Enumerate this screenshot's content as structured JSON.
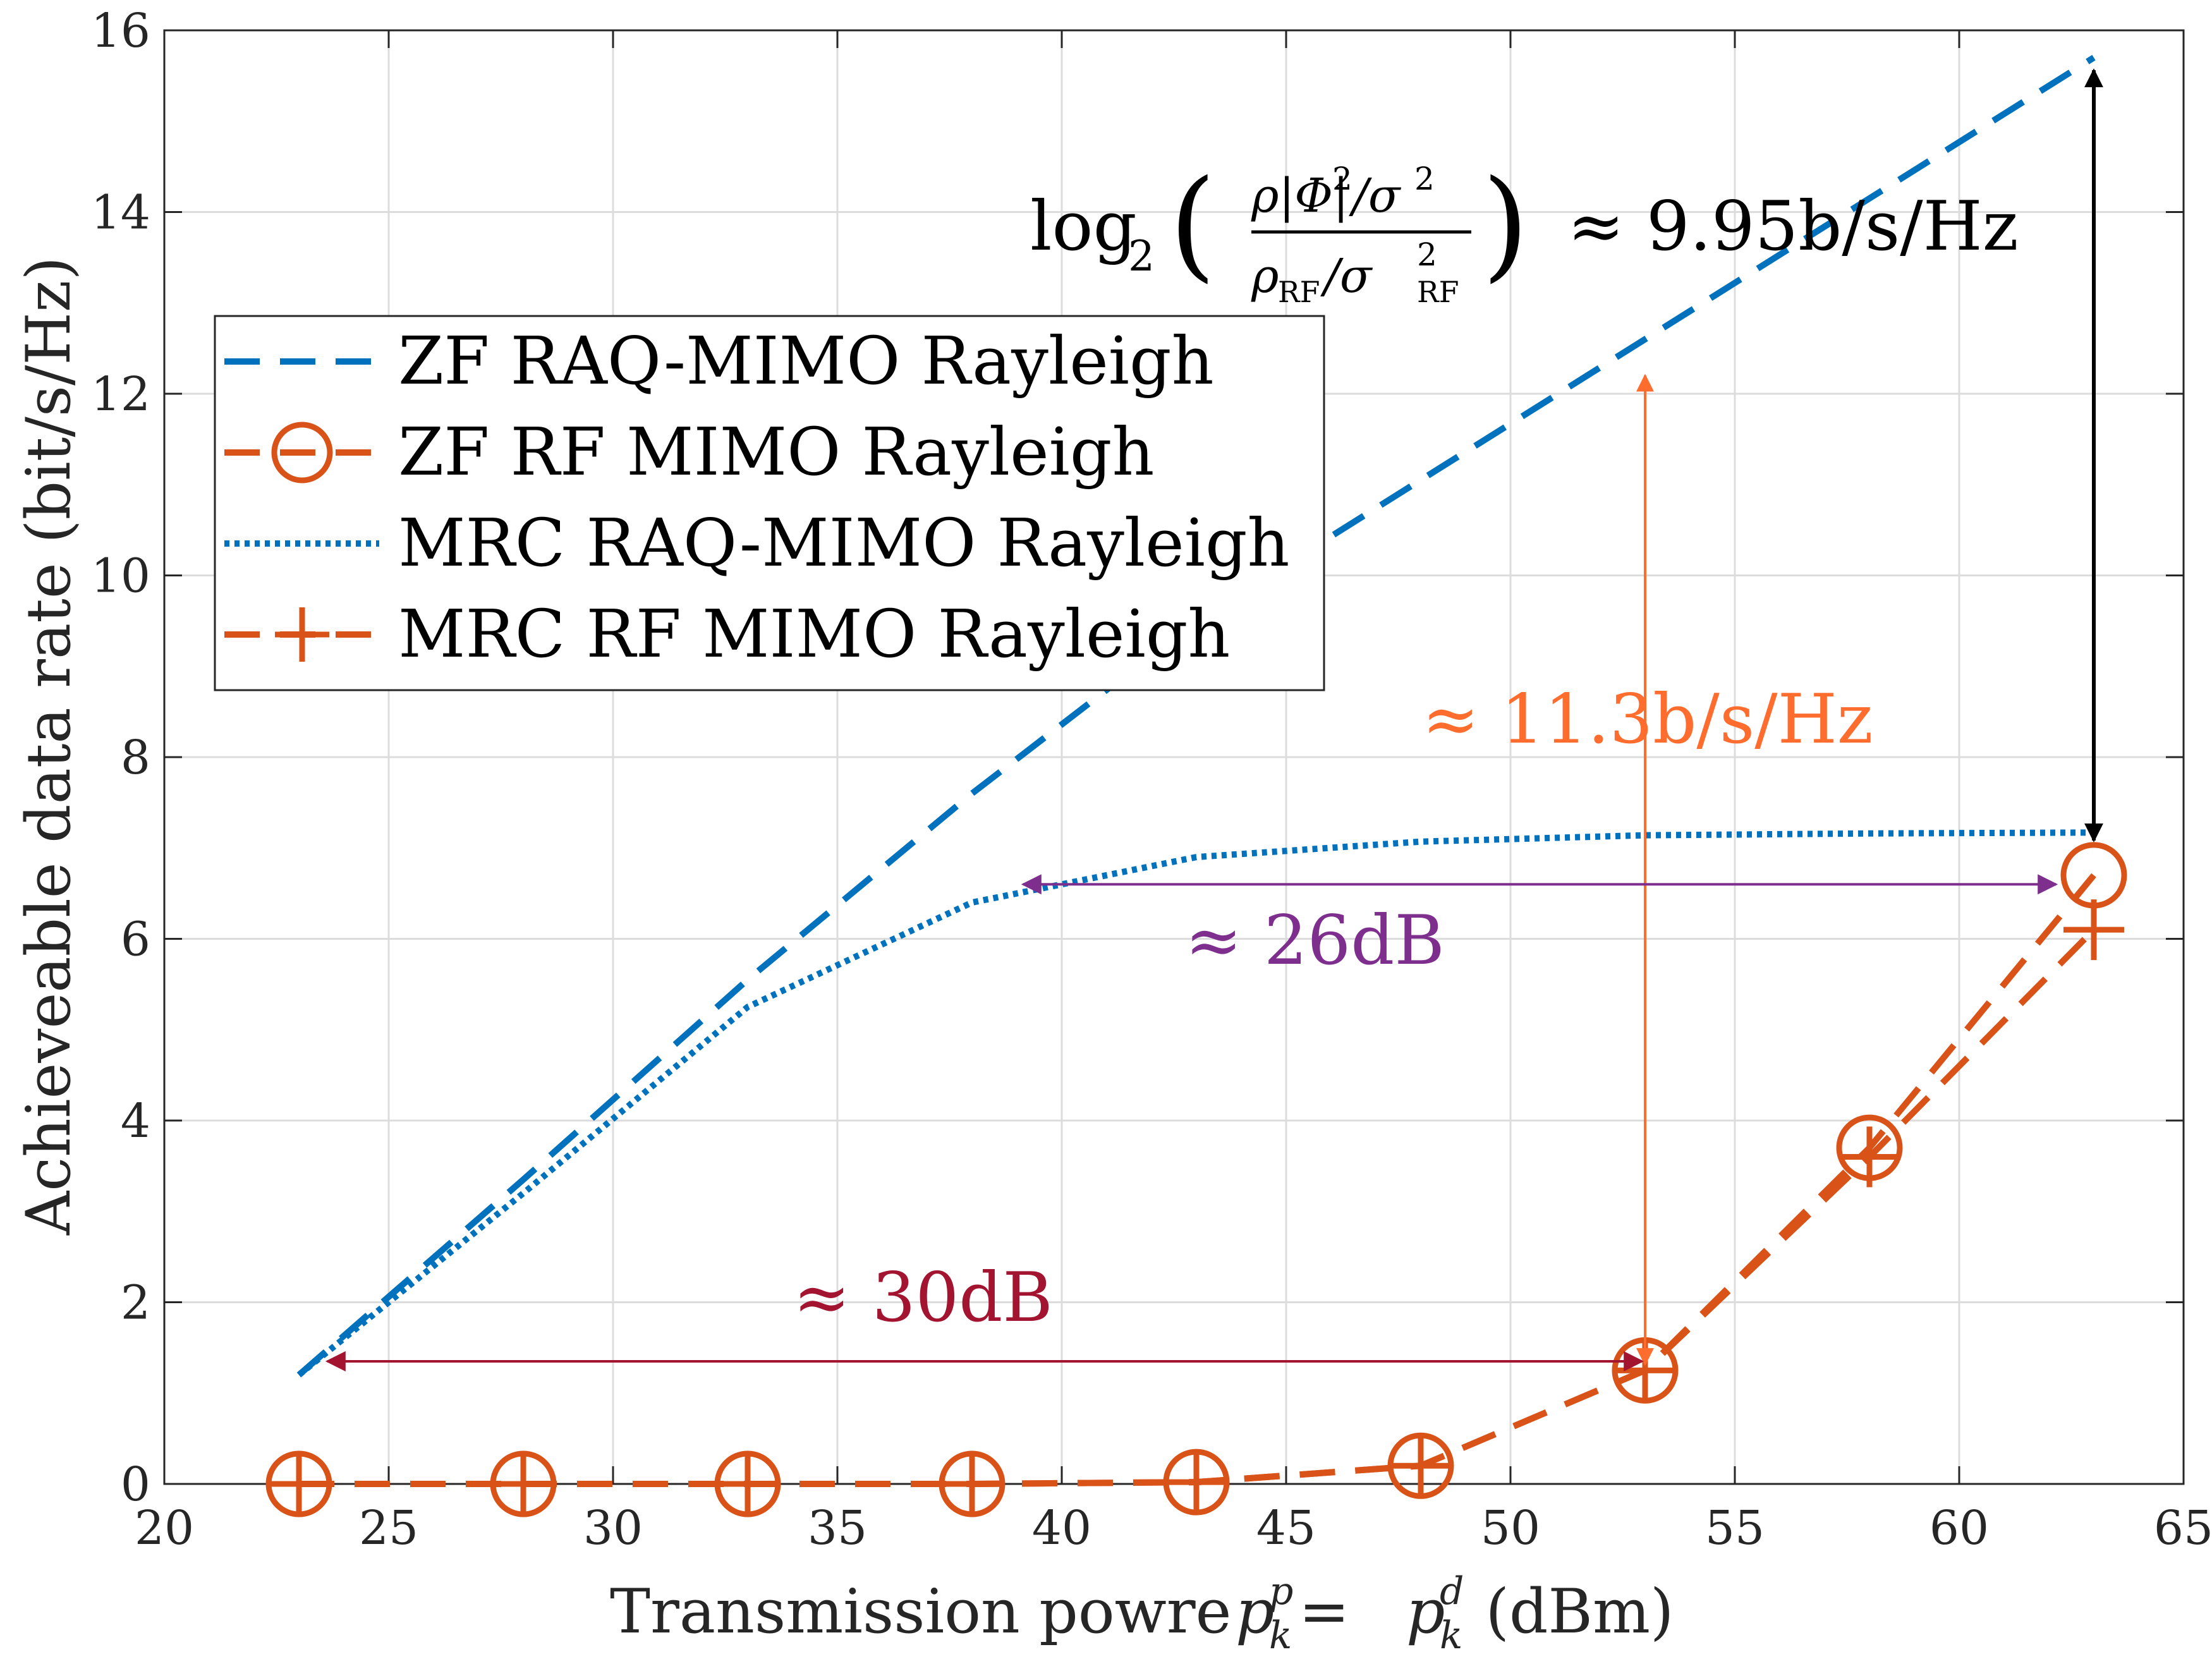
{
  "chart_data": {
    "type": "line",
    "xlabel": "Transmission powre",
    "xlabel_math": [
      "p",
      "k",
      "p",
      " = ",
      "p",
      "k",
      "d",
      " (dBm)"
    ],
    "ylabel": "Achieveable data rate (bit/s/Hz)",
    "xlim": [
      20,
      65
    ],
    "ylim": [
      0,
      16
    ],
    "x_ticks": [
      20,
      25,
      30,
      35,
      40,
      45,
      50,
      55,
      60,
      65
    ],
    "y_ticks": [
      0,
      2,
      4,
      6,
      8,
      10,
      12,
      14,
      16
    ],
    "grid": true,
    "legend_position": "upper-left",
    "series": [
      {
        "name": "ZF RAQ-MIMO Rayleigh",
        "color": "#0072BD",
        "style": "dashed",
        "marker": "none",
        "x": [
          23,
          28,
          33,
          38,
          43,
          48,
          53,
          58,
          63
        ],
        "y": [
          1.2,
          3.35,
          5.55,
          7.6,
          9.5,
          11.05,
          12.6,
          14.15,
          15.7
        ]
      },
      {
        "name": "ZF RF MIMO Rayleigh",
        "color": "#D95319",
        "style": "dashed",
        "marker": "circle",
        "x": [
          23,
          28,
          33,
          38,
          43,
          48,
          53,
          58,
          63
        ],
        "y": [
          0.0,
          0.0,
          0.0,
          0.0,
          0.02,
          0.2,
          1.25,
          3.7,
          6.7
        ]
      },
      {
        "name": "MRC RAQ-MIMO Rayleigh",
        "color": "#0072BD",
        "style": "dotted",
        "marker": "none",
        "x": [
          23,
          28,
          33,
          38,
          43,
          48,
          53,
          58,
          63
        ],
        "y": [
          1.2,
          3.2,
          5.25,
          6.4,
          6.9,
          7.07,
          7.14,
          7.16,
          7.17
        ]
      },
      {
        "name": "MRC RF MIMO Rayleigh",
        "color": "#D95319",
        "style": "dashed",
        "marker": "plus",
        "x": [
          23,
          28,
          33,
          38,
          43,
          48,
          53,
          58,
          63
        ],
        "y": [
          0.0,
          0.0,
          0.0,
          0.0,
          0.02,
          0.2,
          1.25,
          3.6,
          6.1
        ]
      }
    ],
    "annotations": [
      {
        "id": "gap-9.95",
        "label_parts": [
          "log",
          "2",
          "ρ|Φ|",
          "2",
          "/σ",
          "2",
          "ρ",
          "RF",
          "/σ",
          "RF",
          "2",
          "≈ 9.95b/s/Hz"
        ],
        "color": "#000000",
        "arrow": {
          "x": 63,
          "y_from": 15.7,
          "y_to": 6.7
        }
      },
      {
        "id": "gap-11.3",
        "label": "≈ 11.3b/s/Hz",
        "color": "#FF6D2E",
        "arrow": {
          "x": 53,
          "y_from": 1.25,
          "y_to": 12.2
        }
      },
      {
        "id": "gap-26dB",
        "label": "≈ 26dB",
        "color": "#7E2F8E",
        "arrow": {
          "y": 6.6,
          "x_from": 39,
          "x_to": 63
        }
      },
      {
        "id": "gap-30dB",
        "label": "≈ 30dB",
        "color": "#A2142F",
        "arrow": {
          "y": 1.35,
          "x_from": 23,
          "x_to": 53
        }
      }
    ]
  }
}
